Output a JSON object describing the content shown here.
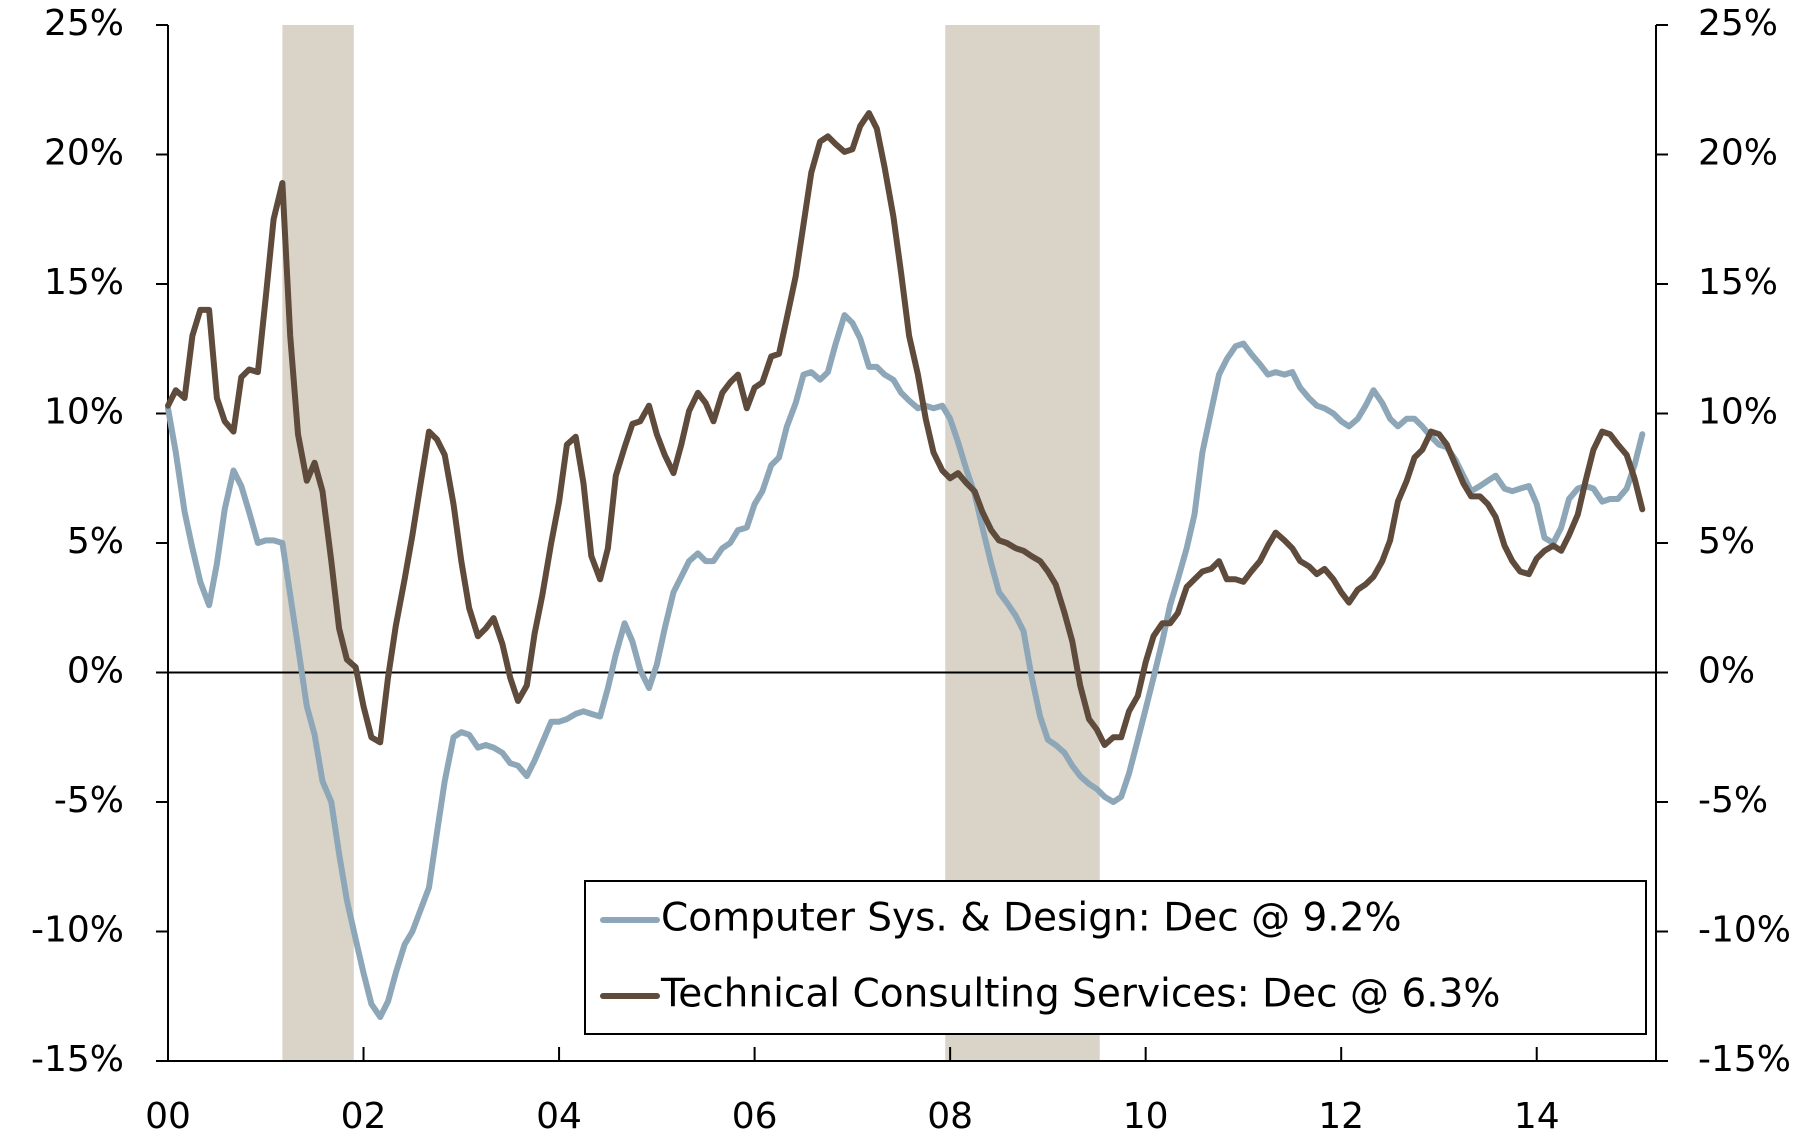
{
  "chart_data": {
    "type": "line",
    "xlim": [
      2000,
      2015.22
    ],
    "xticks": [
      {
        "value": 2000,
        "label": "00"
      },
      {
        "value": 2002,
        "label": "02"
      },
      {
        "value": 2004,
        "label": "04"
      },
      {
        "value": 2006,
        "label": "06"
      },
      {
        "value": 2008,
        "label": "08"
      },
      {
        "value": 2010,
        "label": "10"
      },
      {
        "value": 2012,
        "label": "12"
      },
      {
        "value": 2014,
        "label": "14"
      }
    ],
    "ylim": [
      -15,
      25
    ],
    "yticks": [
      {
        "value": -15,
        "label": "-15%"
      },
      {
        "value": -10,
        "label": "-10%"
      },
      {
        "value": -5,
        "label": "-5%"
      },
      {
        "value": 0,
        "label": "0%"
      },
      {
        "value": 5,
        "label": "5%"
      },
      {
        "value": 10,
        "label": "10%"
      },
      {
        "value": 15,
        "label": "15%"
      },
      {
        "value": 20,
        "label": "20%"
      },
      {
        "value": 25,
        "label": "25%"
      }
    ],
    "y2lim": [
      -15,
      25
    ],
    "y2ticks": [
      {
        "value": -15,
        "label": "-15%"
      },
      {
        "value": -10,
        "label": "-10%"
      },
      {
        "value": -5,
        "label": "-5%"
      },
      {
        "value": 0,
        "label": "0%"
      },
      {
        "value": 5,
        "label": "5%"
      },
      {
        "value": 10,
        "label": "10%"
      },
      {
        "value": 15,
        "label": "15%"
      },
      {
        "value": 20,
        "label": "20%"
      },
      {
        "value": 25,
        "label": "25%"
      }
    ],
    "recessions": [
      [
        2001.17,
        2001.9
      ],
      [
        2007.95,
        2009.53
      ]
    ],
    "recession_color": "#d9d4c7",
    "legend": "bottom-right",
    "x": [
      2000,
      2000.08,
      2000.17,
      2000.25,
      2000.33,
      2000.42,
      2000.5,
      2000.58,
      2000.67,
      2000.75,
      2000.83,
      2000.92,
      2001,
      2001.08,
      2001.17,
      2001.25,
      2001.33,
      2001.42,
      2001.5,
      2001.58,
      2001.67,
      2001.75,
      2001.83,
      2001.92,
      2002,
      2002.08,
      2002.17,
      2002.25,
      2002.33,
      2002.42,
      2002.5,
      2002.58,
      2002.67,
      2002.75,
      2002.83,
      2002.92,
      2003,
      2003.08,
      2003.17,
      2003.25,
      2003.33,
      2003.42,
      2003.5,
      2003.58,
      2003.67,
      2003.75,
      2003.83,
      2003.92,
      2004,
      2004.08,
      2004.17,
      2004.25,
      2004.33,
      2004.42,
      2004.5,
      2004.58,
      2004.67,
      2004.75,
      2004.83,
      2004.92,
      2005,
      2005.08,
      2005.17,
      2005.25,
      2005.33,
      2005.42,
      2005.5,
      2005.58,
      2005.67,
      2005.75,
      2005.83,
      2005.92,
      2006,
      2006.08,
      2006.17,
      2006.25,
      2006.33,
      2006.42,
      2006.5,
      2006.58,
      2006.67,
      2006.75,
      2006.83,
      2006.92,
      2007,
      2007.08,
      2007.17,
      2007.25,
      2007.33,
      2007.42,
      2007.5,
      2007.58,
      2007.67,
      2007.75,
      2007.83,
      2007.92,
      2008,
      2008.08,
      2008.17,
      2008.25,
      2008.33,
      2008.42,
      2008.5,
      2008.58,
      2008.67,
      2008.75,
      2008.83,
      2008.92,
      2009,
      2009.08,
      2009.17,
      2009.25,
      2009.33,
      2009.42,
      2009.5,
      2009.58,
      2009.67,
      2009.75,
      2009.83,
      2009.92,
      2010,
      2010.08,
      2010.17,
      2010.25,
      2010.33,
      2010.42,
      2010.5,
      2010.58,
      2010.67,
      2010.75,
      2010.83,
      2010.92,
      2011,
      2011.08,
      2011.17,
      2011.25,
      2011.33,
      2011.42,
      2011.5,
      2011.58,
      2011.67,
      2011.75,
      2011.83,
      2011.92,
      2012,
      2012.08,
      2012.17,
      2012.25,
      2012.33,
      2012.42,
      2012.5,
      2012.58,
      2012.67,
      2012.75,
      2012.83,
      2012.92,
      2013,
      2013.08,
      2013.17,
      2013.25,
      2013.33,
      2013.42,
      2013.5,
      2013.58,
      2013.67,
      2013.75,
      2013.83,
      2013.92,
      2014,
      2014.08,
      2014.17,
      2014.25,
      2014.33,
      2014.42,
      2014.5,
      2014.58,
      2014.67,
      2014.75,
      2014.83,
      2014.92,
      2015,
      2015.08
    ],
    "series": [
      {
        "name": "Computer Sys. & Design: Dec @ 9.2%",
        "color": "#8ea7b8",
        "values": [
          10.2,
          8.5,
          6.2,
          4.8,
          3.5,
          2.6,
          4.2,
          6.3,
          7.8,
          7.2,
          6.2,
          5.0,
          5.1,
          5.1,
          5.0,
          3.0,
          1.0,
          -1.3,
          -2.4,
          -4.2,
          -5.0,
          -7.0,
          -8.8,
          -10.3,
          -11.6,
          -12.8,
          -13.3,
          -12.7,
          -11.6,
          -10.5,
          -10.0,
          -9.2,
          -8.3,
          -6.2,
          -4.2,
          -2.5,
          -2.3,
          -2.4,
          -2.9,
          -2.8,
          -2.9,
          -3.1,
          -3.5,
          -3.6,
          -4.0,
          -3.4,
          -2.7,
          -1.9,
          -1.9,
          -1.8,
          -1.6,
          -1.5,
          -1.6,
          -1.7,
          -0.6,
          0.7,
          1.9,
          1.2,
          0.1,
          -0.6,
          0.3,
          1.7,
          3.1,
          3.7,
          4.3,
          4.6,
          4.3,
          4.3,
          4.8,
          5.0,
          5.5,
          5.6,
          6.5,
          7.0,
          8.0,
          8.3,
          9.5,
          10.4,
          11.5,
          11.6,
          11.3,
          11.6,
          12.7,
          13.8,
          13.5,
          12.9,
          11.8,
          11.8,
          11.5,
          11.3,
          10.8,
          10.5,
          10.2,
          10.3,
          10.2,
          10.3,
          9.8,
          8.9,
          7.8,
          6.9,
          5.6,
          4.2,
          3.1,
          2.7,
          2.2,
          1.6,
          -0.1,
          -1.7,
          -2.6,
          -2.8,
          -3.1,
          -3.6,
          -4.0,
          -4.3,
          -4.5,
          -4.8,
          -5.0,
          -4.8,
          -3.9,
          -2.6,
          -1.4,
          -0.2,
          1.2,
          2.6,
          3.6,
          4.8,
          6.1,
          8.5,
          10.1,
          11.5,
          12.1,
          12.6,
          12.7,
          12.3,
          11.9,
          11.5,
          11.6,
          11.5,
          11.6,
          11.0,
          10.6,
          10.3,
          10.2,
          10.0,
          9.7,
          9.5,
          9.8,
          10.3,
          10.9,
          10.4,
          9.8,
          9.5,
          9.8,
          9.8,
          9.5,
          9.1,
          8.8,
          8.7,
          8.2,
          7.6,
          7.0,
          7.2,
          7.4,
          7.6,
          7.1,
          7.0,
          7.1,
          7.2,
          6.5,
          5.2,
          5.0,
          5.6,
          6.7,
          7.1,
          7.2,
          7.1,
          6.6,
          6.7,
          6.7,
          7.1,
          8.0,
          9.2
        ]
      },
      {
        "name": "Technical Consulting Services: Dec @ 6.3%",
        "color": "#5e4b3c",
        "values": [
          10.3,
          10.9,
          10.6,
          13.0,
          14.0,
          14.0,
          10.6,
          9.7,
          9.3,
          11.4,
          11.7,
          11.6,
          14.5,
          17.5,
          18.9,
          13.0,
          9.2,
          7.4,
          8.1,
          7.0,
          4.3,
          1.7,
          0.5,
          0.2,
          -1.3,
          -2.5,
          -2.7,
          -0.2,
          1.8,
          3.6,
          5.3,
          7.2,
          9.3,
          9.0,
          8.4,
          6.5,
          4.3,
          2.5,
          1.4,
          1.7,
          2.1,
          1.1,
          -0.2,
          -1.1,
          -0.5,
          1.5,
          3.0,
          5.0,
          6.6,
          8.8,
          9.1,
          7.3,
          4.5,
          3.6,
          4.8,
          7.6,
          8.7,
          9.6,
          9.7,
          10.3,
          9.2,
          8.4,
          7.7,
          8.8,
          10.1,
          10.8,
          10.4,
          9.7,
          10.8,
          11.2,
          11.5,
          10.2,
          11.0,
          11.2,
          12.2,
          12.3,
          13.7,
          15.3,
          17.3,
          19.3,
          20.5,
          20.7,
          20.4,
          20.1,
          20.2,
          21.1,
          21.6,
          21.0,
          19.5,
          17.6,
          15.4,
          13.0,
          11.5,
          9.8,
          8.5,
          7.8,
          7.5,
          7.7,
          7.3,
          7.0,
          6.2,
          5.5,
          5.1,
          5.0,
          4.8,
          4.7,
          4.5,
          4.3,
          3.9,
          3.4,
          2.3,
          1.2,
          -0.5,
          -1.8,
          -2.2,
          -2.8,
          -2.5,
          -2.5,
          -1.5,
          -0.9,
          0.4,
          1.4,
          1.9,
          1.9,
          2.3,
          3.3,
          3.6,
          3.9,
          4.0,
          4.3,
          3.6,
          3.6,
          3.5,
          3.9,
          4.3,
          4.9,
          5.4,
          5.1,
          4.8,
          4.3,
          4.1,
          3.8,
          4.0,
          3.6,
          3.1,
          2.7,
          3.2,
          3.4,
          3.7,
          4.3,
          5.1,
          6.6,
          7.4,
          8.3,
          8.6,
          9.3,
          9.2,
          8.8,
          8.0,
          7.3,
          6.8,
          6.8,
          6.5,
          6.0,
          4.9,
          4.3,
          3.9,
          3.8,
          4.4,
          4.7,
          4.9,
          4.7,
          5.3,
          6.1,
          7.4,
          8.6,
          9.3,
          9.2,
          8.8,
          8.4,
          7.5,
          6.3
        ]
      }
    ]
  }
}
